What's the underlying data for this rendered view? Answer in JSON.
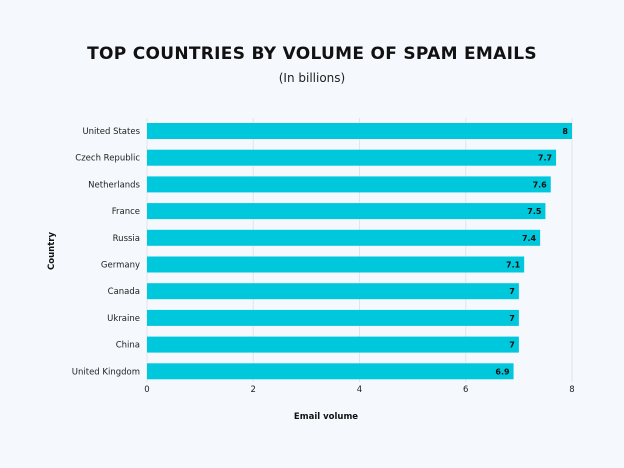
{
  "chart_data": {
    "type": "bar",
    "orientation": "horizontal",
    "title": "TOP COUNTRIES BY VOLUME OF SPAM EMAILS",
    "subtitle": "(In billions)",
    "xlabel": "Email volume",
    "ylabel": "Country",
    "categories": [
      "United States",
      "Czech Republic",
      "Netherlands",
      "France",
      "Russia",
      "Germany",
      "Canada",
      "Ukraine",
      "China",
      "United Kingdom"
    ],
    "values": [
      8,
      7.7,
      7.6,
      7.5,
      7.4,
      7.1,
      7,
      7,
      7,
      6.9
    ],
    "data_labels": [
      "8",
      "7.7",
      "7.6",
      "7.5",
      "7.4",
      "7.1",
      "7",
      "7",
      "7",
      "6.9"
    ],
    "xlim": [
      0,
      8
    ],
    "xticks": [
      "0",
      "2",
      "4",
      "6",
      "8"
    ],
    "grid": true,
    "bar_color": "#00c8dc",
    "background": "#f5f9fd"
  }
}
